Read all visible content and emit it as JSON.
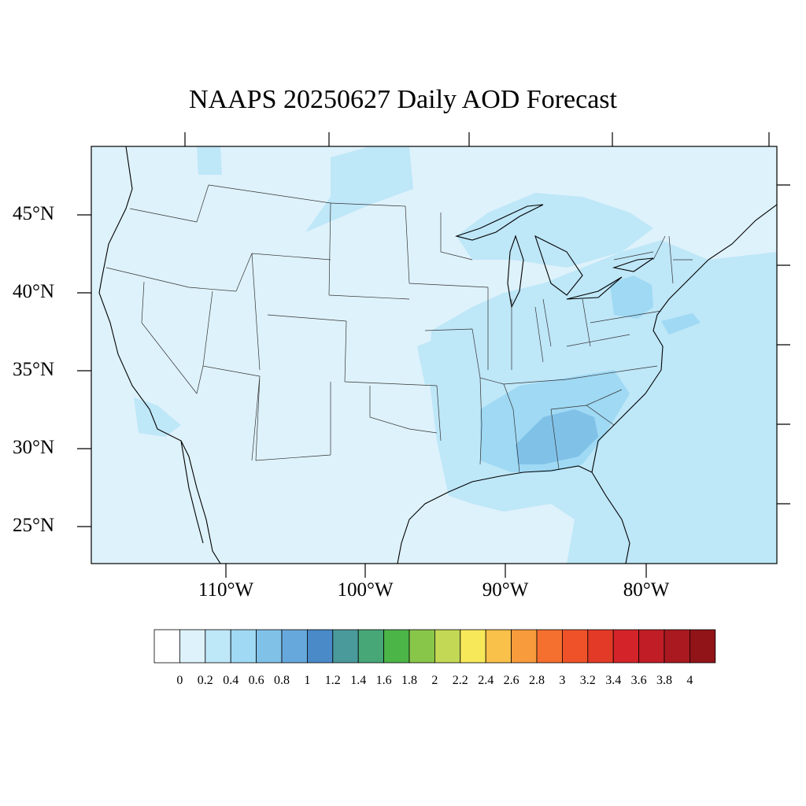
{
  "title": "NAAPS 20250627 Daily AOD Forecast",
  "lat_labels": [
    "45°N",
    "40°N",
    "35°N",
    "30°N",
    "25°N"
  ],
  "lon_labels": [
    "110°W",
    "100°W",
    "90°W",
    "80°W"
  ],
  "colorbar": {
    "labels": [
      "0",
      "0.2",
      "0.4",
      "0.6",
      "0.8",
      "1",
      "1.2",
      "1.4",
      "1.6",
      "1.8",
      "2",
      "2.2",
      "2.4",
      "2.6",
      "2.8",
      "3",
      "3.2",
      "3.4",
      "3.6",
      "3.8",
      "4"
    ],
    "colors": [
      "#ffffff",
      "#def2fb",
      "#bee7f8",
      "#9fd9f4",
      "#80c1e8",
      "#67a8dc",
      "#4a8ac9",
      "#4a9a9b",
      "#47a777",
      "#4cb548",
      "#88c64a",
      "#c3d855",
      "#f7e85a",
      "#f9c04a",
      "#f89b3c",
      "#f56f2e",
      "#ef5229",
      "#e23a27",
      "#d42429",
      "#c11d26",
      "#a9191f",
      "#911418"
    ]
  },
  "map": {
    "background_color": "#def2fb",
    "aod_level_0_2_0_4": "#bee7f8",
    "aod_level_0_4_0_6": "#9fd9f4",
    "aod_level_0_6_0_8": "#80c1e8"
  }
}
